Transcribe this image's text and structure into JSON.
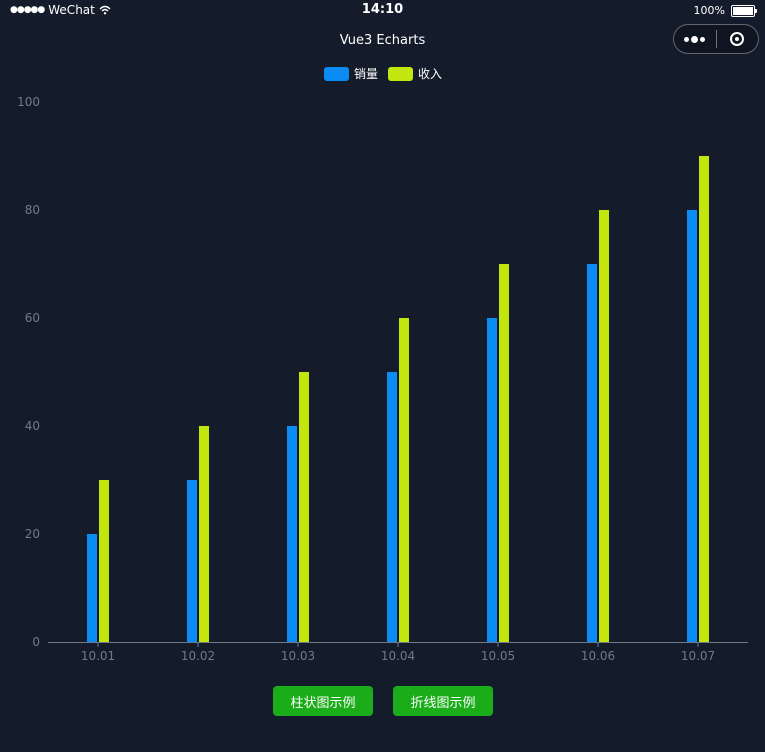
{
  "status_bar": {
    "carrier": "WeChat",
    "time": "14:10",
    "battery": "100%"
  },
  "nav": {
    "title": "Vue3 Echarts",
    "more_icon": "more-dots-icon",
    "close_icon": "target-circle-icon"
  },
  "chart_data": {
    "type": "bar",
    "categories": [
      "10.01",
      "10.02",
      "10.03",
      "10.04",
      "10.05",
      "10.06",
      "10.07"
    ],
    "series": [
      {
        "name": "销量",
        "color": "#0b8cf5",
        "values": [
          20,
          30,
          40,
          50,
          60,
          70,
          80
        ]
      },
      {
        "name": "收入",
        "color": "#c3e60f",
        "values": [
          30,
          40,
          50,
          60,
          70,
          80,
          90
        ]
      }
    ],
    "ylim": [
      0,
      100
    ],
    "yticks": [
      0,
      20,
      40,
      60,
      80,
      100
    ],
    "grid": false,
    "legend_position": "top-center"
  },
  "buttons": {
    "bar_label": "柱状图示例",
    "line_label": "折线图示例",
    "color": "#1aad19"
  }
}
